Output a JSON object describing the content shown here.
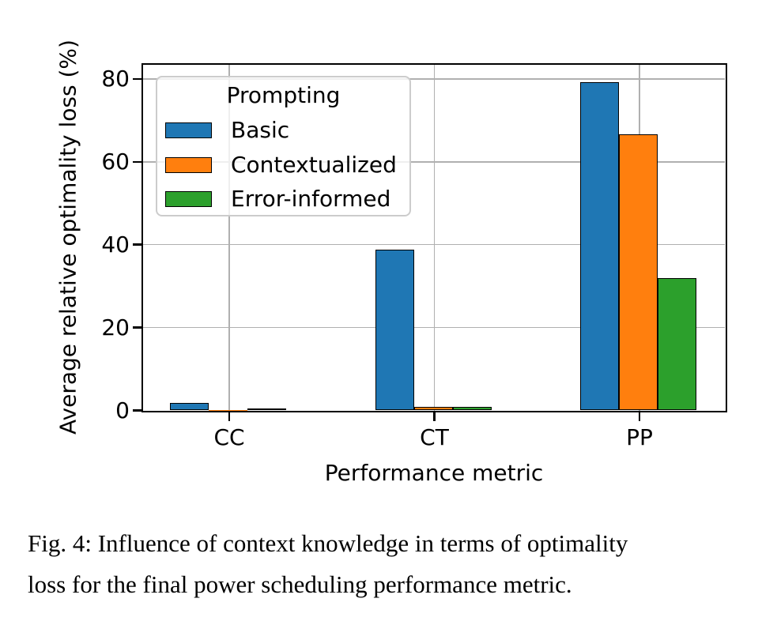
{
  "chart_data": {
    "type": "bar",
    "title": "",
    "xlabel": "Performance metric",
    "ylabel": "Average relative optimality loss (%)",
    "categories": [
      "CC",
      "CT",
      "PP"
    ],
    "series": [
      {
        "name": "Basic",
        "color": "#1f77b4",
        "values": [
          1.8,
          38.7,
          79.3
        ]
      },
      {
        "name": "Contextualized",
        "color": "#ff7f0e",
        "values": [
          0.05,
          0.8,
          66.6
        ]
      },
      {
        "name": "Error-informed",
        "color": "#2ca02c",
        "values": [
          0.4,
          0.8,
          32.0
        ]
      }
    ],
    "legend": {
      "title": "Prompting",
      "position": "upper left"
    },
    "yticks": [
      0,
      20,
      40,
      60,
      80
    ],
    "ylim": [
      0,
      83.4
    ],
    "grid": true,
    "colors": {
      "grid": "#b0b0b0",
      "bar_edge": "#000000",
      "spine": "#000000"
    }
  },
  "caption": {
    "line1": "Fig. 4: Influence of context knowledge in terms of optimality",
    "line2": "loss for the final power scheduling performance metric."
  }
}
